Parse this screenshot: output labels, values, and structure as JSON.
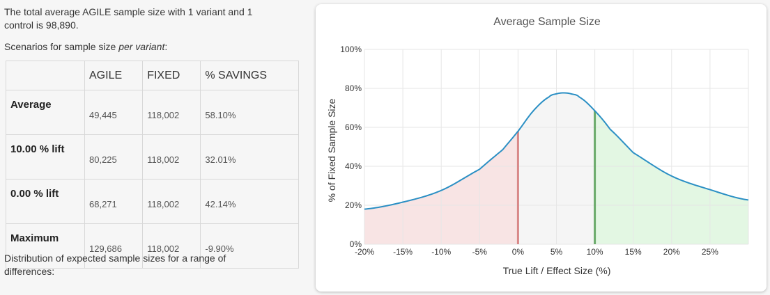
{
  "summary": {
    "line1": "The total average AGILE sample size with 1 variant and 1",
    "line2": "control is 98,890."
  },
  "scenarios_label": "Scenarios for sample size ",
  "scenarios_emph": "per variant",
  "scenarios_colon": ":",
  "table": {
    "headers": [
      "",
      "AGILE",
      "FIXED",
      "% SAVINGS"
    ],
    "rows": [
      {
        "label": "Average",
        "agile": "49,445",
        "fixed": "118,002",
        "savings": "58.10%"
      },
      {
        "label": "10.00 % lift",
        "agile": "80,225",
        "fixed": "118,002",
        "savings": "32.01%"
      },
      {
        "label": "0.00 % lift",
        "agile": "68,271",
        "fixed": "118,002",
        "savings": "42.14%"
      },
      {
        "label": "Maximum",
        "agile": "129,686",
        "fixed": "118,002",
        "savings": "-9.90%"
      }
    ]
  },
  "distribution": {
    "line1": "Distribution of expected sample sizes for a range of",
    "line2": "differences:"
  },
  "chart_data": {
    "type": "area",
    "title": "Average Sample Size",
    "xlabel": "True Lift / Effect Size (%)",
    "ylabel": "% of Fixed Sample Size",
    "xlim": [
      -20,
      30
    ],
    "ylim": [
      0,
      100
    ],
    "x_ticks": [
      -20,
      -15,
      -10,
      -5,
      0,
      5,
      10,
      15,
      20,
      25
    ],
    "x_tick_labels": [
      "-20%",
      "-15%",
      "-10%",
      "-5%",
      "0%",
      "5%",
      "10%",
      "15%",
      "20%",
      "25%"
    ],
    "y_ticks": [
      0,
      20,
      40,
      60,
      80,
      100
    ],
    "y_tick_labels": [
      "0%",
      "20%",
      "40%",
      "60%",
      "80%",
      "100%"
    ],
    "grid": true,
    "curve": {
      "x": [
        -20,
        -15,
        -10,
        -5,
        -2,
        0,
        2,
        4,
        5,
        6,
        7,
        8,
        10,
        12,
        15,
        20,
        25,
        30
      ],
      "y": [
        18,
        21.6,
        27.6,
        38.5,
        48.5,
        58,
        68.5,
        75.5,
        77.2,
        77.7,
        77.1,
        75.5,
        68.5,
        59,
        47,
        35,
        28,
        22.7
      ]
    },
    "markers": [
      {
        "x": 0,
        "y": 58,
        "color": "#d88888"
      },
      {
        "x": 10,
        "y": 68.5,
        "color": "#6aaa6a"
      }
    ],
    "regions": [
      {
        "from": -20,
        "to": 0,
        "color": "#f8e4e4"
      },
      {
        "from": 0,
        "to": 10,
        "color": "#f5f5f5"
      },
      {
        "from": 10,
        "to": 30,
        "color": "#e3f7e3"
      }
    ],
    "line_color": "#2a8fc4"
  }
}
